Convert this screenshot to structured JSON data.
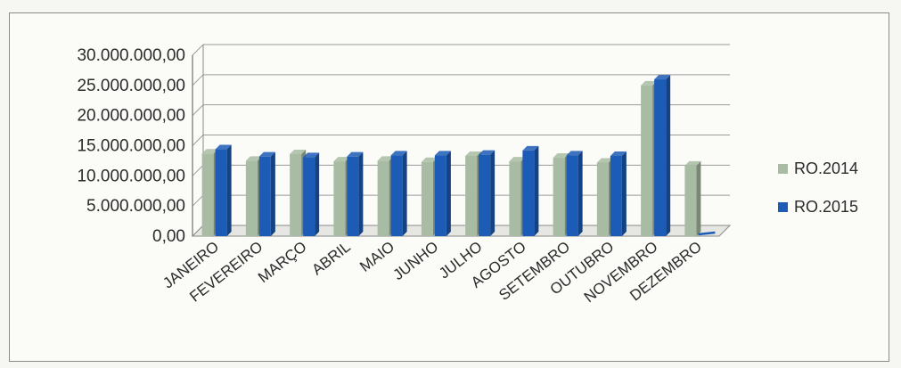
{
  "chart_data": {
    "type": "bar",
    "categories": [
      "JANEIRO",
      "FEVEREIRO",
      "MARÇO",
      "ABRIL",
      "MAIO",
      "JUNHO",
      "JULHO",
      "AGOSTO",
      "SETEMBRO",
      "OUTUBRO",
      "NOVEMBRO",
      "DEZEMBRO"
    ],
    "series": [
      {
        "name": "RO.2014",
        "color": "#a8bca3",
        "values": [
          13700000,
          12500000,
          13600000,
          12400000,
          12500000,
          12300000,
          13300000,
          12400000,
          13000000,
          12200000,
          25000000,
          11700000
        ]
      },
      {
        "name": "RO.2015",
        "color": "#1c5bb6",
        "values": [
          14400000,
          13200000,
          13100000,
          13200000,
          13400000,
          13400000,
          13500000,
          14200000,
          13400000,
          13300000,
          26000000,
          0
        ]
      }
    ],
    "y_ticks": [
      "0,00",
      "5.000.000,00",
      "10.000.000,00",
      "15.000.000,00",
      "20.000.000,00",
      "25.000.000,00",
      "30.000.000,00"
    ],
    "ylim": [
      0,
      30000000
    ],
    "grid": true,
    "legend_position": "right",
    "title": "",
    "xlabel": "",
    "ylabel": ""
  }
}
